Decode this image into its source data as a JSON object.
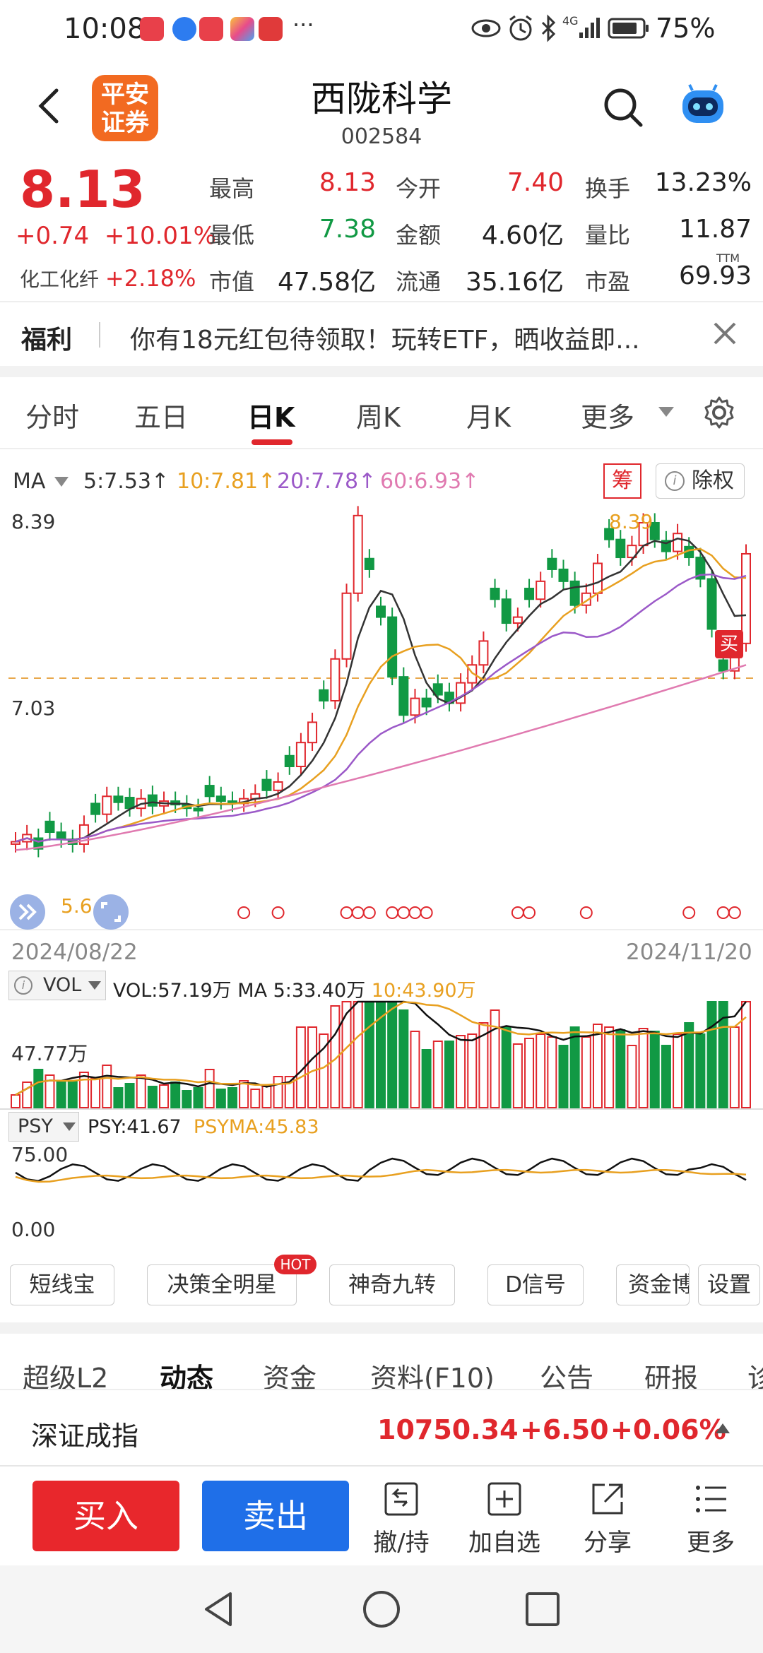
{
  "status": {
    "time": "10:08",
    "dots": "···",
    "network": "4G",
    "battery": "75%"
  },
  "header": {
    "logo_line1": "平安",
    "logo_line2": "证券",
    "name": "西陇科学",
    "code": "002584"
  },
  "quote": {
    "price": "8.13",
    "change": "+0.74",
    "change_pct": "+10.01%",
    "sector_name": "化工化纤",
    "sector_pct": "+2.18%",
    "fields": [
      {
        "label": "最高",
        "value": "8.13",
        "color": "#e0272d"
      },
      {
        "label": "今开",
        "value": "7.40",
        "color": "#e0272d"
      },
      {
        "label": "换手",
        "value": "13.23%",
        "color": "#222222"
      },
      {
        "label": "最低",
        "value": "7.38",
        "color": "#119944"
      },
      {
        "label": "金额",
        "value": "4.60亿",
        "color": "#222222"
      },
      {
        "label": "量比",
        "value": "11.87",
        "color": "#222222"
      },
      {
        "label": "市值",
        "value": "47.58亿",
        "color": "#222222"
      },
      {
        "label": "流通",
        "value": "35.16亿",
        "color": "#222222"
      },
      {
        "label": "市盈",
        "value": "69.93",
        "color": "#222222"
      }
    ],
    "ttm": "TTM"
  },
  "welfare": {
    "tag": "福利",
    "text": "你有18元红包待领取！玩转ETF，晒收益即..."
  },
  "tabs": [
    {
      "label": "分时",
      "active": false
    },
    {
      "label": "五日",
      "active": false
    },
    {
      "label": "日K",
      "active": true
    },
    {
      "label": "周K",
      "active": false
    },
    {
      "label": "月K",
      "active": false
    },
    {
      "label": "更多",
      "active": false
    }
  ],
  "ma_legend": {
    "label": "MA",
    "ma5": "5:7.53↑",
    "ma10": "10:7.81↑",
    "ma20": "20:7.78↑",
    "ma60": "60:6.93↑"
  },
  "chart_buttons": {
    "chou": "筹",
    "chuquan": "除权"
  },
  "chart_data": {
    "type": "candlestick",
    "y_high_label": "8.39",
    "y_mid_label": "7.03",
    "y_low_label": "5.6",
    "max_annotation": "8.39",
    "x_start": "2024/08/22",
    "x_end": "2024/11/20",
    "buy_marker": "买",
    "volume": {
      "indicator": "VOL",
      "vol": "VOL:57.19万",
      "ma5": "MA 5:33.40万",
      "ma10": "10:43.90万",
      "axis_label": "47.77万"
    },
    "psy": {
      "indicator": "PSY",
      "psy": "PSY:41.67",
      "psyma": "PSYMA:45.83",
      "top": "75.00",
      "bottom": "0.00"
    }
  },
  "tools": [
    "短线宝",
    "决策全明星",
    "神奇九转",
    "D信号",
    "资金博",
    "设置"
  ],
  "hot_badge": "HOT",
  "info_tabs": [
    {
      "label": "超级L2",
      "active": false
    },
    {
      "label": "动态",
      "active": true
    },
    {
      "label": "资金",
      "active": false
    },
    {
      "label": "资料(F10)",
      "active": false
    },
    {
      "label": "公告",
      "active": false
    },
    {
      "label": "研报",
      "active": false
    },
    {
      "label": "诊",
      "active": false
    }
  ],
  "index": {
    "name": "深证成指",
    "value": "10750.34",
    "change": "+6.50",
    "pct": "+0.06%"
  },
  "bottom": {
    "buy": "买入",
    "sell": "卖出",
    "actions": [
      "撤/持",
      "加自选",
      "分享",
      "更多"
    ]
  }
}
